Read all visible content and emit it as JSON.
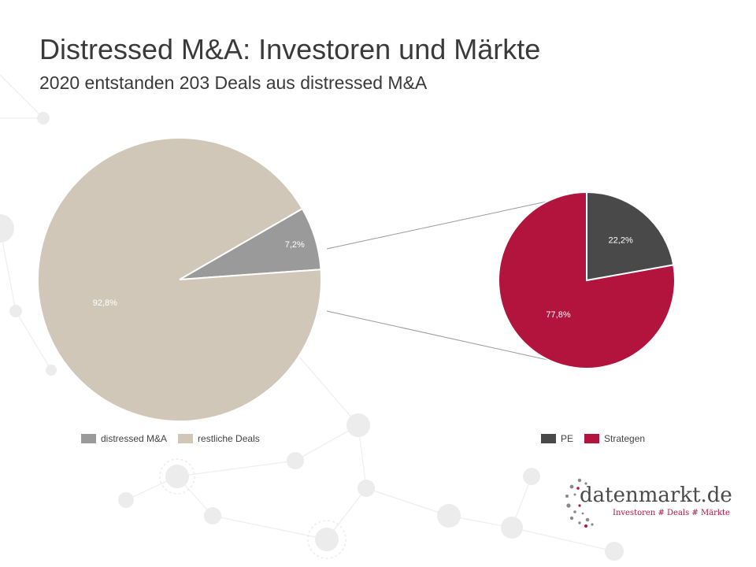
{
  "header": {
    "title": "Distressed M&A: Investoren und Märkte",
    "subtitle": "2020 entstanden 203 Deals aus distressed M&A"
  },
  "chart_data": [
    {
      "type": "pie",
      "slices": [
        {
          "label": "distressed M&A",
          "value": 7.2,
          "display": "7,2%",
          "color": "#9a9a9a"
        },
        {
          "label": "restliche Deals",
          "value": 92.8,
          "display": "92,8%",
          "color": "#d1c7b8"
        }
      ],
      "legend": "bottom"
    },
    {
      "type": "pie",
      "slices": [
        {
          "label": "PE",
          "value": 22.2,
          "display": "22,2%",
          "color": "#494949"
        },
        {
          "label": "Strategen",
          "value": 77.8,
          "display": "77,8%",
          "color": "#b3143d"
        }
      ],
      "legend": "bottom"
    }
  ],
  "legend_left": [
    {
      "label": "distressed M&A",
      "color": "#9a9a9a"
    },
    {
      "label": "restliche Deals",
      "color": "#d1c7b8"
    }
  ],
  "legend_right": [
    {
      "label": "PE",
      "color": "#494949"
    },
    {
      "label": "Strategen",
      "color": "#b3143d"
    }
  ],
  "logo": {
    "name": "datenmarkt.de",
    "tagline": "Investoren # Deals # Märkte"
  }
}
